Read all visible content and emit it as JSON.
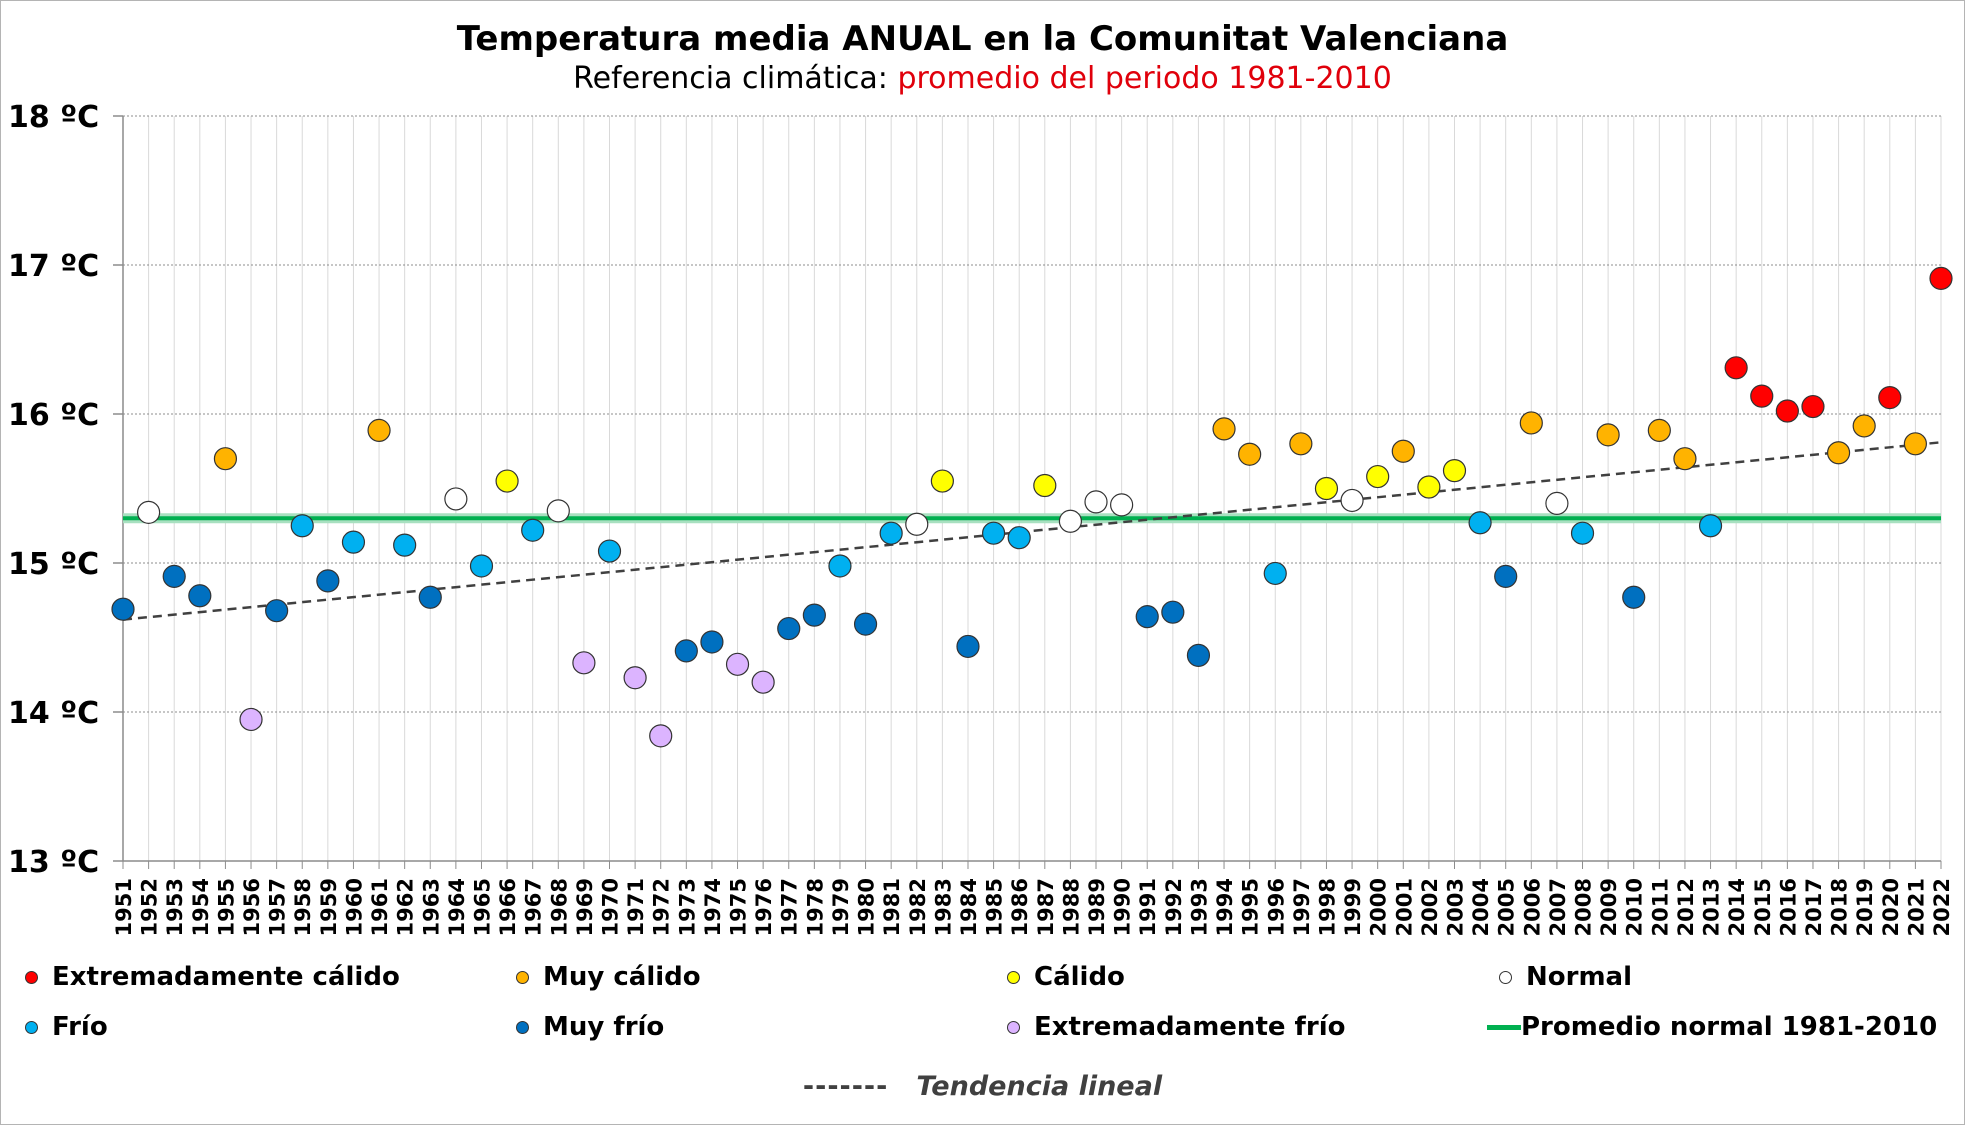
{
  "chart_data": {
    "type": "scatter",
    "title": "Temperatura media ANUAL en la Comunitat Valenciana",
    "subtitle_prefix": "Referencia climática: ",
    "subtitle_highlight": "promedio del periodo 1981-2010",
    "ylim": [
      13,
      18
    ],
    "yticks": [
      "13 ºC",
      "14 ºC",
      "15 ºC",
      "16 ºC",
      "17 ºC",
      "18 ºC"
    ],
    "ytick_values": [
      13,
      14,
      15,
      16,
      17,
      18
    ],
    "grid": true,
    "normal_value": 15.3,
    "trend": {
      "start_year": 1951,
      "start_value": 14.62,
      "end_year": 2022,
      "end_value": 15.81
    },
    "categories": {
      "ext_calido": {
        "label": "Extremadamente cálido",
        "color": "#ff0000"
      },
      "muy_calido": {
        "label": "Muy cálido",
        "color": "#ffb300"
      },
      "calido": {
        "label": "Cálido",
        "color": "#ffff00"
      },
      "normal": {
        "label": "Normal",
        "color": "#ffffff"
      },
      "frio": {
        "label": "Frío",
        "color": "#00b0f0"
      },
      "muy_frio": {
        "label": "Muy frío",
        "color": "#0070c0"
      },
      "ext_frio": {
        "label": "Extremadamente frío",
        "color": "#dcb4ff"
      }
    },
    "points": [
      {
        "year": 1951,
        "value": 14.69,
        "cat": "muy_frio"
      },
      {
        "year": 1952,
        "value": 15.34,
        "cat": "normal"
      },
      {
        "year": 1953,
        "value": 14.91,
        "cat": "muy_frio"
      },
      {
        "year": 1954,
        "value": 14.78,
        "cat": "muy_frio"
      },
      {
        "year": 1955,
        "value": 15.7,
        "cat": "muy_calido"
      },
      {
        "year": 1956,
        "value": 13.95,
        "cat": "ext_frio"
      },
      {
        "year": 1957,
        "value": 14.68,
        "cat": "muy_frio"
      },
      {
        "year": 1958,
        "value": 15.25,
        "cat": "frio"
      },
      {
        "year": 1959,
        "value": 14.88,
        "cat": "muy_frio"
      },
      {
        "year": 1960,
        "value": 15.14,
        "cat": "frio"
      },
      {
        "year": 1961,
        "value": 15.89,
        "cat": "muy_calido"
      },
      {
        "year": 1962,
        "value": 15.12,
        "cat": "frio"
      },
      {
        "year": 1963,
        "value": 14.77,
        "cat": "muy_frio"
      },
      {
        "year": 1964,
        "value": 15.43,
        "cat": "normal"
      },
      {
        "year": 1965,
        "value": 14.98,
        "cat": "frio"
      },
      {
        "year": 1966,
        "value": 15.55,
        "cat": "calido"
      },
      {
        "year": 1967,
        "value": 15.22,
        "cat": "frio"
      },
      {
        "year": 1968,
        "value": 15.35,
        "cat": "normal"
      },
      {
        "year": 1969,
        "value": 14.33,
        "cat": "ext_frio"
      },
      {
        "year": 1970,
        "value": 15.08,
        "cat": "frio"
      },
      {
        "year": 1971,
        "value": 14.23,
        "cat": "ext_frio"
      },
      {
        "year": 1972,
        "value": 13.84,
        "cat": "ext_frio"
      },
      {
        "year": 1973,
        "value": 14.41,
        "cat": "muy_frio"
      },
      {
        "year": 1974,
        "value": 14.47,
        "cat": "muy_frio"
      },
      {
        "year": 1975,
        "value": 14.32,
        "cat": "ext_frio"
      },
      {
        "year": 1976,
        "value": 14.2,
        "cat": "ext_frio"
      },
      {
        "year": 1977,
        "value": 14.56,
        "cat": "muy_frio"
      },
      {
        "year": 1978,
        "value": 14.65,
        "cat": "muy_frio"
      },
      {
        "year": 1979,
        "value": 14.98,
        "cat": "frio"
      },
      {
        "year": 1980,
        "value": 14.59,
        "cat": "muy_frio"
      },
      {
        "year": 1981,
        "value": 15.2,
        "cat": "frio"
      },
      {
        "year": 1982,
        "value": 15.26,
        "cat": "normal"
      },
      {
        "year": 1983,
        "value": 15.55,
        "cat": "calido"
      },
      {
        "year": 1984,
        "value": 14.44,
        "cat": "muy_frio"
      },
      {
        "year": 1985,
        "value": 15.2,
        "cat": "frio"
      },
      {
        "year": 1986,
        "value": 15.17,
        "cat": "frio"
      },
      {
        "year": 1987,
        "value": 15.52,
        "cat": "calido"
      },
      {
        "year": 1988,
        "value": 15.28,
        "cat": "normal"
      },
      {
        "year": 1989,
        "value": 15.41,
        "cat": "normal"
      },
      {
        "year": 1990,
        "value": 15.39,
        "cat": "normal"
      },
      {
        "year": 1991,
        "value": 14.64,
        "cat": "muy_frio"
      },
      {
        "year": 1992,
        "value": 14.67,
        "cat": "muy_frio"
      },
      {
        "year": 1993,
        "value": 14.38,
        "cat": "muy_frio"
      },
      {
        "year": 1994,
        "value": 15.9,
        "cat": "muy_calido"
      },
      {
        "year": 1995,
        "value": 15.73,
        "cat": "muy_calido"
      },
      {
        "year": 1996,
        "value": 14.93,
        "cat": "frio"
      },
      {
        "year": 1997,
        "value": 15.8,
        "cat": "muy_calido"
      },
      {
        "year": 1998,
        "value": 15.5,
        "cat": "calido"
      },
      {
        "year": 1999,
        "value": 15.42,
        "cat": "normal"
      },
      {
        "year": 2000,
        "value": 15.58,
        "cat": "calido"
      },
      {
        "year": 2001,
        "value": 15.75,
        "cat": "muy_calido"
      },
      {
        "year": 2002,
        "value": 15.51,
        "cat": "calido"
      },
      {
        "year": 2003,
        "value": 15.62,
        "cat": "calido"
      },
      {
        "year": 2004,
        "value": 15.27,
        "cat": "frio"
      },
      {
        "year": 2005,
        "value": 14.91,
        "cat": "muy_frio"
      },
      {
        "year": 2006,
        "value": 15.94,
        "cat": "muy_calido"
      },
      {
        "year": 2007,
        "value": 15.4,
        "cat": "normal"
      },
      {
        "year": 2008,
        "value": 15.2,
        "cat": "frio"
      },
      {
        "year": 2009,
        "value": 15.86,
        "cat": "muy_calido"
      },
      {
        "year": 2010,
        "value": 14.77,
        "cat": "muy_frio"
      },
      {
        "year": 2011,
        "value": 15.89,
        "cat": "muy_calido"
      },
      {
        "year": 2012,
        "value": 15.7,
        "cat": "muy_calido"
      },
      {
        "year": 2013,
        "value": 15.25,
        "cat": "frio"
      },
      {
        "year": 2014,
        "value": 16.31,
        "cat": "ext_calido"
      },
      {
        "year": 2015,
        "value": 16.12,
        "cat": "ext_calido"
      },
      {
        "year": 2016,
        "value": 16.02,
        "cat": "ext_calido"
      },
      {
        "year": 2017,
        "value": 16.05,
        "cat": "ext_calido"
      },
      {
        "year": 2018,
        "value": 15.74,
        "cat": "muy_calido"
      },
      {
        "year": 2019,
        "value": 15.92,
        "cat": "muy_calido"
      },
      {
        "year": 2020,
        "value": 16.11,
        "cat": "ext_calido"
      },
      {
        "year": 2021,
        "value": 15.8,
        "cat": "muy_calido"
      },
      {
        "year": 2022,
        "value": 16.91,
        "cat": "ext_calido"
      }
    ],
    "legend": {
      "position": "bottom",
      "normal_line_label": "Promedio normal 1981-2010",
      "normal_line_color": "#00b050",
      "trend_label": "Tendencia lineal",
      "trend_dash_text": "-------"
    }
  }
}
